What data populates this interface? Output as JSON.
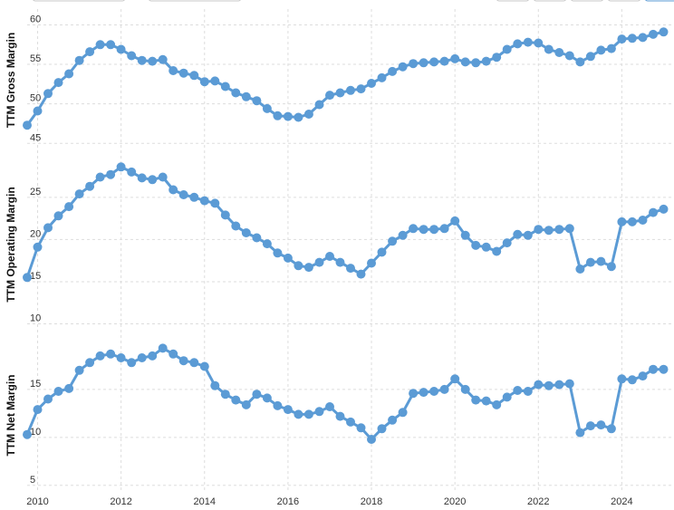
{
  "colors": {
    "series": "#5b9bd5",
    "grid": "#dddddd",
    "text": "#333333"
  },
  "chart_data": [
    {
      "type": "line",
      "ylabel": "TTM Gross Margin",
      "ylim": [
        44,
        62
      ],
      "yticks": [
        45,
        50,
        55,
        60
      ],
      "grid": true,
      "x": [
        2009.75,
        2010.0,
        2010.25,
        2010.5,
        2010.75,
        2011.0,
        2011.25,
        2011.5,
        2011.75,
        2012.0,
        2012.25,
        2012.5,
        2012.75,
        2013.0,
        2013.25,
        2013.5,
        2013.75,
        2014.0,
        2014.25,
        2014.5,
        2014.75,
        2015.0,
        2015.25,
        2015.5,
        2015.75,
        2016.0,
        2016.25,
        2016.5,
        2016.75,
        2017.0,
        2017.25,
        2017.5,
        2017.75,
        2018.0,
        2018.25,
        2018.5,
        2018.75,
        2019.0,
        2019.25,
        2019.5,
        2019.75,
        2020.0,
        2020.25,
        2020.5,
        2020.75,
        2021.0,
        2021.25,
        2021.5,
        2021.75,
        2022.0,
        2022.25,
        2022.5,
        2022.75,
        2023.0,
        2023.25,
        2023.5,
        2023.75,
        2024.0,
        2024.25,
        2024.5,
        2024.75,
        2025.0
      ],
      "values": [
        47.3,
        49.1,
        51.3,
        52.7,
        53.8,
        55.5,
        56.6,
        57.5,
        57.5,
        56.9,
        56.1,
        55.5,
        55.4,
        55.6,
        54.2,
        53.9,
        53.6,
        52.8,
        52.9,
        52.2,
        51.4,
        50.9,
        50.4,
        49.4,
        48.5,
        48.4,
        48.3,
        48.7,
        49.9,
        51.1,
        51.4,
        51.7,
        51.9,
        52.6,
        53.3,
        54.1,
        54.7,
        55.1,
        55.2,
        55.3,
        55.4,
        55.7,
        55.3,
        55.2,
        55.4,
        55.9,
        56.9,
        57.6,
        57.8,
        57.7,
        56.9,
        56.5,
        56.1,
        55.3,
        56.0,
        56.8,
        57.0,
        58.2,
        58.3,
        58.4,
        58.8,
        59.1
      ]
    },
    {
      "type": "line",
      "ylabel": "TTM Operating Margin",
      "ylim": [
        9.2,
        29.6
      ],
      "yticks": [
        10,
        15,
        20,
        25
      ],
      "grid": true,
      "x": [
        2009.75,
        2010.0,
        2010.25,
        2010.5,
        2010.75,
        2011.0,
        2011.25,
        2011.5,
        2011.75,
        2012.0,
        2012.25,
        2012.5,
        2012.75,
        2013.0,
        2013.25,
        2013.5,
        2013.75,
        2014.0,
        2014.25,
        2014.5,
        2014.75,
        2015.0,
        2015.25,
        2015.5,
        2015.75,
        2016.0,
        2016.25,
        2016.5,
        2016.75,
        2017.0,
        2017.25,
        2017.5,
        2017.75,
        2018.0,
        2018.25,
        2018.5,
        2018.75,
        2019.0,
        2019.25,
        2019.5,
        2019.75,
        2020.0,
        2020.25,
        2020.5,
        2020.75,
        2021.0,
        2021.25,
        2021.5,
        2021.75,
        2022.0,
        2022.25,
        2022.5,
        2022.75,
        2023.0,
        2023.25,
        2023.5,
        2023.75,
        2024.0,
        2024.25,
        2024.5,
        2024.75,
        2025.0
      ],
      "values": [
        15.5,
        19.1,
        21.4,
        22.8,
        23.9,
        25.4,
        26.3,
        27.4,
        27.7,
        28.6,
        28.0,
        27.3,
        27.1,
        27.4,
        25.9,
        25.3,
        25.0,
        24.6,
        24.3,
        22.9,
        21.6,
        20.8,
        20.2,
        19.5,
        18.4,
        17.8,
        16.9,
        16.7,
        17.3,
        18.0,
        17.3,
        16.6,
        15.9,
        17.2,
        18.5,
        19.8,
        20.5,
        21.3,
        21.2,
        21.2,
        21.3,
        22.2,
        20.5,
        19.3,
        19.1,
        18.6,
        19.6,
        20.6,
        20.5,
        21.2,
        21.1,
        21.2,
        21.3,
        16.5,
        17.3,
        17.4,
        16.8,
        22.1,
        22.1,
        22.3,
        23.2,
        23.6
      ]
    },
    {
      "type": "line",
      "ylabel": "TTM Net Margin",
      "ylim": [
        4.6,
        20.0
      ],
      "yticks": [
        5,
        10,
        15
      ],
      "grid": true,
      "xticks": [
        2010,
        2012,
        2014,
        2016,
        2018,
        2020,
        2022,
        2024
      ],
      "x": [
        2009.75,
        2010.0,
        2010.25,
        2010.5,
        2010.75,
        2011.0,
        2011.25,
        2011.5,
        2011.75,
        2012.0,
        2012.25,
        2012.5,
        2012.75,
        2013.0,
        2013.25,
        2013.5,
        2013.75,
        2014.0,
        2014.25,
        2014.5,
        2014.75,
        2015.0,
        2015.25,
        2015.5,
        2015.75,
        2016.0,
        2016.25,
        2016.5,
        2016.75,
        2017.0,
        2017.25,
        2017.5,
        2017.75,
        2018.0,
        2018.25,
        2018.5,
        2018.75,
        2019.0,
        2019.25,
        2019.5,
        2019.75,
        2020.0,
        2020.25,
        2020.5,
        2020.75,
        2021.0,
        2021.25,
        2021.5,
        2021.75,
        2022.0,
        2022.25,
        2022.5,
        2022.75,
        2023.0,
        2023.25,
        2023.5,
        2023.75,
        2024.0,
        2024.25,
        2024.5,
        2024.75,
        2025.0
      ],
      "values": [
        10.3,
        12.9,
        14.0,
        14.8,
        15.1,
        17.0,
        17.8,
        18.5,
        18.7,
        18.3,
        17.8,
        18.3,
        18.5,
        19.3,
        18.7,
        18.0,
        17.8,
        17.4,
        15.4,
        14.5,
        13.9,
        13.4,
        14.5,
        14.1,
        13.3,
        12.9,
        12.4,
        12.4,
        12.7,
        13.2,
        12.2,
        11.6,
        11.0,
        9.8,
        10.9,
        11.8,
        12.6,
        14.6,
        14.7,
        14.8,
        15.0,
        16.1,
        15.0,
        13.9,
        13.8,
        13.4,
        14.2,
        14.9,
        14.8,
        15.5,
        15.4,
        15.5,
        15.6,
        10.5,
        11.2,
        11.3,
        10.9,
        16.1,
        16.0,
        16.4,
        17.1,
        17.1
      ]
    }
  ]
}
